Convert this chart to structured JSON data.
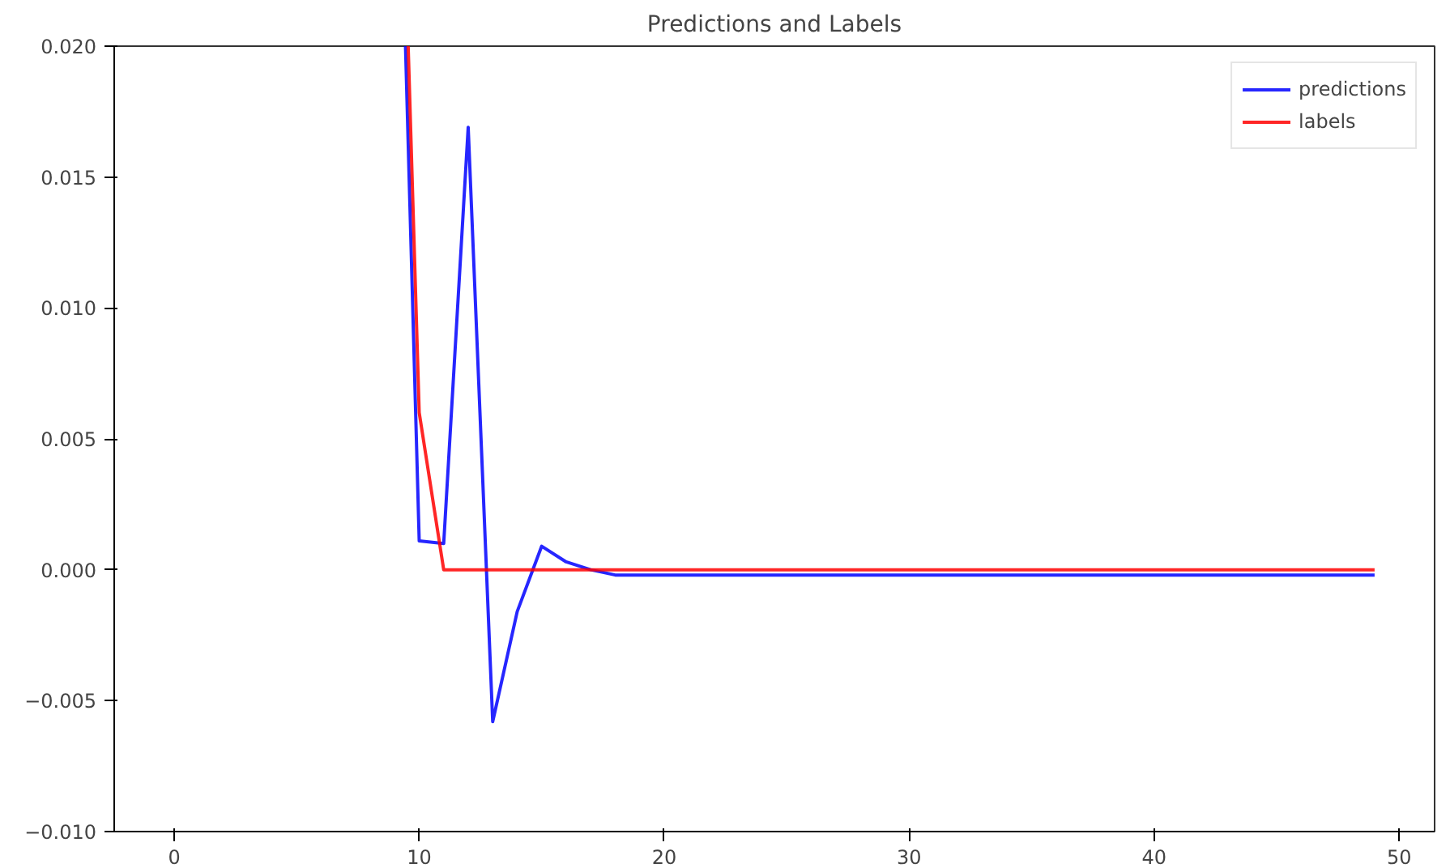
{
  "chart_data": {
    "type": "line",
    "title": "Predictions and Labels",
    "xlim": [
      -2.45,
      51.45
    ],
    "xticks": [
      0,
      10,
      20,
      30,
      40,
      50
    ],
    "ylim": [
      -0.01,
      0.02
    ],
    "yticks": [
      {
        "value": -0.01,
        "label": "−0.010"
      },
      {
        "value": -0.005,
        "label": "−0.005"
      },
      {
        "value": 0,
        "label": "0.000"
      },
      {
        "value": 0.005,
        "label": "0.005"
      },
      {
        "value": 0.01,
        "label": "0.010"
      },
      {
        "value": 0.015,
        "label": "0.015"
      },
      {
        "value": 0.02,
        "label": "0.020"
      }
    ],
    "grid": false,
    "legend": "top right",
    "series": [
      {
        "name": "predictions",
        "color": "#0000ff",
        "x": [
          9.44,
          10,
          11,
          12,
          13,
          14,
          15,
          16,
          17,
          18,
          19,
          20,
          25,
          30,
          35,
          40,
          45,
          49
        ],
        "values": [
          0.02,
          0.0011,
          0.001,
          0.0169,
          -0.0058,
          -0.0016,
          0.0009,
          0.0003,
          0.0,
          -0.0002,
          -0.0002,
          -0.0002,
          -0.0002,
          -0.0002,
          -0.0002,
          -0.0002,
          -0.0002,
          -0.0002
        ]
      },
      {
        "name": "labels",
        "color": "#ff0000",
        "x": [
          9.55,
          10,
          11,
          20,
          30,
          40,
          49
        ],
        "values": [
          0.02,
          0.006,
          0.0,
          0.0,
          0.0,
          0.0,
          0.0
        ]
      }
    ]
  }
}
